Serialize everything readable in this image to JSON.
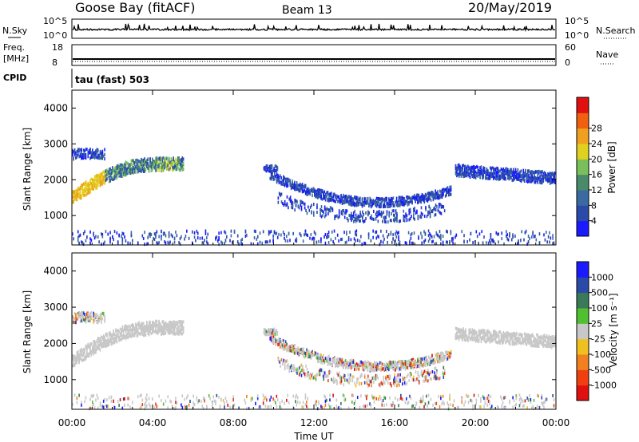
{
  "header": {
    "station": "Goose Bay (fitACF)",
    "beam": "Beam 13",
    "date": "20/May/2019"
  },
  "noise_panel": {
    "left_label": "N.Sky",
    "right_label": "N.Search",
    "left_ticks": [
      "10^5",
      "10^0"
    ],
    "right_ticks": [
      "10^5",
      "10^0"
    ]
  },
  "freq_panel": {
    "label_top": "Freq.",
    "label_unit": "[MHz]",
    "left_ticks": [
      "18",
      "8"
    ],
    "right_label": "Nave",
    "right_ticks": [
      "60",
      "0"
    ],
    "cpid_label": "CPID",
    "cpid_value": "tau (fast) 503"
  },
  "chart_data": [
    {
      "type": "heatmap",
      "title": "Power",
      "ylabel": "Slant Range [km]",
      "xlabel": "",
      "colorbar_label": "Power [dB]",
      "colorbar_ticks": [
        "4",
        "8",
        "12",
        "16",
        "20",
        "24",
        "28"
      ],
      "yticks": [
        "1000",
        "2000",
        "3000",
        "4000"
      ],
      "ylim": [
        180,
        4500
      ],
      "xlim": [
        0,
        24
      ],
      "colors": [
        "#1a1aff",
        "#2b4aa8",
        "#3a6aa0",
        "#4a8a6a",
        "#7abf5a",
        "#e0d020",
        "#f0a020",
        "#f06010",
        "#e01010"
      ]
    },
    {
      "type": "heatmap",
      "title": "Velocity",
      "ylabel": "Slant Range [km]",
      "xlabel": "Time UT",
      "colorbar_label": "Velocity [m s⁻¹]",
      "colorbar_ticks": [
        "1000",
        "500",
        "100",
        "25",
        "-25",
        "-100",
        "-500",
        "-1000"
      ],
      "xticks": [
        "00:00",
        "04:00",
        "08:00",
        "12:00",
        "16:00",
        "20:00",
        "00:00"
      ],
      "yticks": [
        "1000",
        "2000",
        "3000",
        "4000"
      ],
      "ylim": [
        180,
        4500
      ],
      "xlim": [
        0,
        24
      ],
      "colors": [
        "#1a1aff",
        "#2b4aa8",
        "#3a7a5a",
        "#50c030",
        "#c8c8c8",
        "#f0c020",
        "#f08020",
        "#f04010",
        "#e01010"
      ]
    }
  ]
}
